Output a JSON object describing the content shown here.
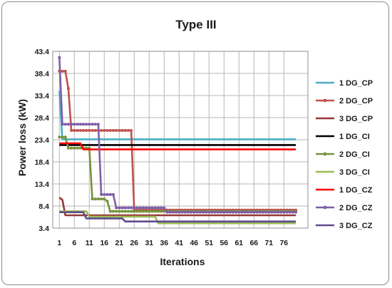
{
  "chart_data": {
    "type": "line",
    "title": "Type III",
    "xlabel": "Iterations",
    "ylabel": "Power loss (kW)",
    "xlim": [
      1,
      80
    ],
    "ylim": [
      3.4,
      43.4
    ],
    "xticks": [
      1,
      6,
      11,
      16,
      21,
      26,
      31,
      36,
      41,
      46,
      51,
      56,
      61,
      66,
      71,
      76
    ],
    "yticks": [
      3.4,
      8.4,
      13.4,
      18.4,
      23.4,
      28.4,
      33.4,
      38.4,
      43.4
    ],
    "grid": true,
    "legend_position": "right",
    "series": [
      {
        "name": "1 DG_CP",
        "color": "#4bacc6",
        "marker": false,
        "points": [
          [
            1,
            34.5
          ],
          [
            2,
            23.5
          ],
          [
            80,
            23.5
          ]
        ]
      },
      {
        "name": "2 DG_CP",
        "color": "#c0504d",
        "marker": true,
        "points": [
          [
            1,
            38.9
          ],
          [
            2,
            38.9
          ],
          [
            3,
            38.9
          ],
          [
            4,
            35.0
          ],
          [
            5,
            25.5
          ],
          [
            25,
            25.5
          ],
          [
            26,
            7.5
          ],
          [
            80,
            7.5
          ]
        ]
      },
      {
        "name": "3 DG_CP",
        "color": "#953735",
        "marker": false,
        "points": [
          [
            1,
            10.3
          ],
          [
            2,
            9.8
          ],
          [
            3,
            6.3
          ],
          [
            80,
            6.3
          ]
        ]
      },
      {
        "name": "1 DG_CI",
        "color": "#000000",
        "marker": false,
        "points": [
          [
            1,
            22.2
          ],
          [
            80,
            22.2
          ]
        ]
      },
      {
        "name": "2 DG_CI",
        "color": "#77933c",
        "marker": true,
        "points": [
          [
            1,
            24.0
          ],
          [
            3,
            24.0
          ],
          [
            4,
            21.5
          ],
          [
            11,
            21.5
          ],
          [
            12,
            10.0
          ],
          [
            17,
            9.5
          ],
          [
            18,
            7.2
          ],
          [
            80,
            7.2
          ]
        ]
      },
      {
        "name": "3 DG_CI",
        "color": "#9bbb59",
        "marker": false,
        "points": [
          [
            1,
            7.2
          ],
          [
            10,
            7.2
          ],
          [
            11,
            6.0
          ],
          [
            33,
            6.0
          ],
          [
            34,
            4.5
          ],
          [
            80,
            4.5
          ]
        ]
      },
      {
        "name": "1 DG_CZ",
        "color": "#ff0000",
        "marker": false,
        "points": [
          [
            1,
            22.6
          ],
          [
            8,
            22.6
          ],
          [
            9,
            21.2
          ],
          [
            80,
            21.2
          ]
        ]
      },
      {
        "name": "2 DG_CZ",
        "color": "#7f5ea8",
        "marker": true,
        "points": [
          [
            1,
            42.0
          ],
          [
            2,
            26.9
          ],
          [
            14,
            26.9
          ],
          [
            15,
            11.0
          ],
          [
            19,
            11.0
          ],
          [
            20,
            8.0
          ],
          [
            36,
            8.0
          ],
          [
            37,
            7.0
          ],
          [
            80,
            7.0
          ]
        ]
      },
      {
        "name": "3 DG_CZ",
        "color": "#5f4b8b",
        "marker": false,
        "points": [
          [
            1,
            7.0
          ],
          [
            9,
            7.0
          ],
          [
            10,
            5.6
          ],
          [
            22,
            5.6
          ],
          [
            23,
            4.9
          ],
          [
            80,
            4.9
          ]
        ]
      }
    ]
  }
}
